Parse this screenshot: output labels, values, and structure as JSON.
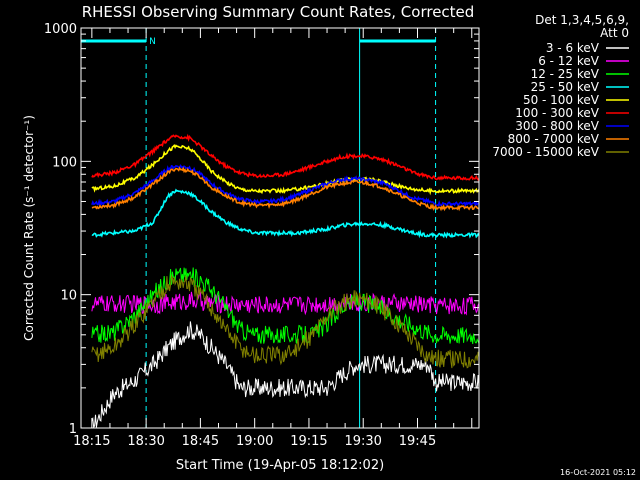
{
  "chart_data": {
    "type": "line",
    "title": "RHESSI Observing Summary Count Rates, Corrected",
    "xlabel": "Start Time (19-Apr-05 18:12:02)",
    "ylabel": "Corrected Count Rate (s⁻¹ detector⁻¹)",
    "yscale": "log",
    "ylim": [
      1,
      1000
    ],
    "xlim_minutes": [
      0,
      110
    ],
    "xtick_labels": [
      "18:15",
      "18:30",
      "18:45",
      "19:00",
      "19:15",
      "19:30",
      "19:45"
    ],
    "ytick_labels": [
      "1",
      "10",
      "100",
      "1000"
    ],
    "legend_header": [
      "Det 1,3,4,5,6,9,",
      "Att 0"
    ],
    "legend_position": "top-right outside plot",
    "night_marker_label": "N",
    "timestamp": "16-Oct-2021 05:12",
    "background_color": "#000000",
    "axis_color": "#ffffff",
    "marker_color": "#00ffff",
    "x_minutes": [
      3,
      9,
      15,
      20,
      24,
      26,
      30,
      33,
      36,
      40,
      44,
      48,
      52,
      56,
      60,
      64,
      68,
      72,
      76,
      80,
      84,
      88,
      92,
      96,
      98,
      102,
      106,
      110
    ],
    "series": [
      {
        "name": "3 - 6 keV",
        "color": "#ffffff",
        "values": [
          1,
          1.8,
          2.3,
          3,
          4,
          4.5,
          5.5,
          5,
          4,
          3,
          2,
          2,
          2,
          2,
          2,
          2,
          2,
          2.5,
          3,
          3,
          3,
          3,
          3,
          3,
          2.2,
          2.2,
          2.2,
          2.2
        ]
      },
      {
        "name": "6 - 12 keV",
        "color": "#ff00ff",
        "values": [
          8.5,
          8.5,
          8.5,
          8.5,
          8.6,
          8.8,
          9,
          8.9,
          8.7,
          8.5,
          8.4,
          8.4,
          8.4,
          8.4,
          8.4,
          8.5,
          8.6,
          8.7,
          8.7,
          8.7,
          8.6,
          8.5,
          8.5,
          8.4,
          8.3,
          8.3,
          8.3,
          8.3
        ]
      },
      {
        "name": "12 - 25 keV",
        "color": "#00ff00",
        "values": [
          5,
          5.2,
          7,
          10,
          13,
          14,
          14,
          13,
          11,
          8,
          5.5,
          5,
          5,
          5,
          5,
          5,
          6,
          8,
          9,
          8.5,
          7.5,
          6.5,
          5.8,
          5.2,
          5,
          5,
          5,
          5
        ]
      },
      {
        "name": "25 - 50 keV",
        "color": "#00ffff",
        "values": [
          28,
          29,
          30,
          35,
          55,
          60,
          58,
          50,
          42,
          35,
          31,
          29,
          29,
          29,
          29,
          30,
          31,
          33,
          34,
          34,
          33,
          31,
          29,
          28,
          28,
          28,
          28,
          28
        ]
      },
      {
        "name": "50 - 100 keV",
        "color": "#ffff00",
        "values": [
          62,
          65,
          75,
          95,
          120,
          130,
          125,
          105,
          85,
          70,
          62,
          60,
          60,
          60,
          62,
          65,
          68,
          72,
          74,
          73,
          70,
          65,
          62,
          60,
          60,
          60,
          60,
          60
        ]
      },
      {
        "name": "100 - 300 keV",
        "color": "#ff0000",
        "values": [
          78,
          82,
          95,
          120,
          145,
          155,
          150,
          130,
          110,
          92,
          82,
          78,
          78,
          80,
          85,
          92,
          100,
          108,
          110,
          108,
          102,
          92,
          82,
          77,
          75,
          75,
          75,
          75
        ]
      },
      {
        "name": "300 - 800 keV",
        "color": "#0000ff",
        "values": [
          48,
          50,
          58,
          72,
          88,
          92,
          90,
          80,
          68,
          58,
          52,
          50,
          50,
          52,
          56,
          62,
          68,
          73,
          74,
          72,
          68,
          60,
          53,
          50,
          48,
          48,
          48,
          48
        ]
      },
      {
        "name": "800 - 7000 keV",
        "color": "#ff8000",
        "values": [
          45,
          47,
          54,
          68,
          82,
          88,
          85,
          76,
          64,
          55,
          49,
          47,
          47,
          48,
          52,
          58,
          64,
          68,
          70,
          68,
          63,
          56,
          50,
          46,
          45,
          45,
          45,
          45
        ]
      },
      {
        "name": "7000 - 15000 keV",
        "color": "#808000",
        "values": [
          3.5,
          4,
          6,
          9,
          12,
          12.5,
          12,
          10,
          8,
          5.5,
          4,
          3.5,
          3.5,
          3.5,
          4,
          5,
          7,
          8.5,
          9.5,
          9,
          7.5,
          6,
          4.5,
          3.5,
          3.3,
          3.3,
          3.3,
          3.3
        ]
      }
    ],
    "vertical_lines_minutes": [
      {
        "x": 0,
        "style": "solid"
      },
      {
        "x": 18,
        "style": "dashed"
      },
      {
        "x": 77,
        "style": "solid"
      },
      {
        "x": 98,
        "style": "dashed"
      }
    ],
    "night_bars_minutes": [
      [
        0,
        18
      ],
      [
        77,
        98
      ]
    ]
  }
}
